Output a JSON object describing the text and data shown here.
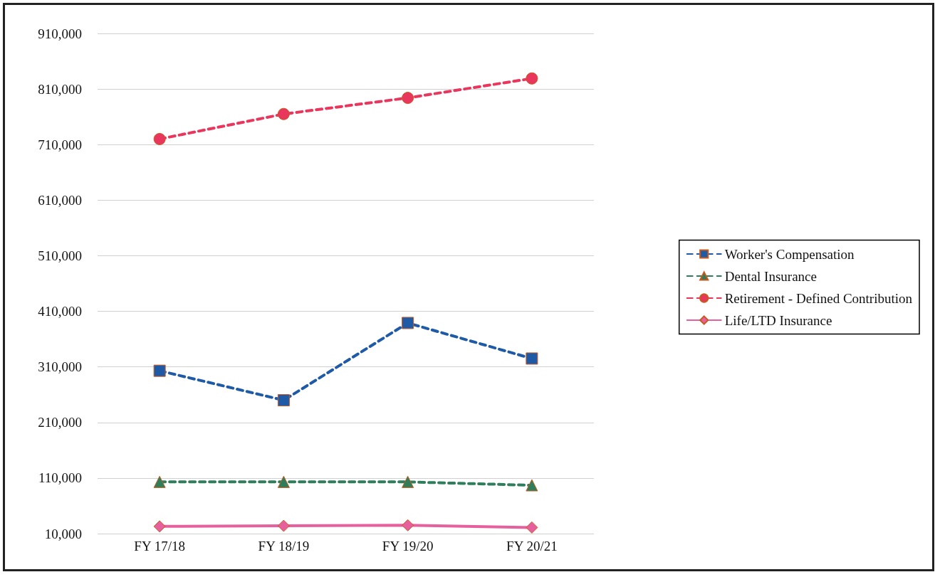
{
  "chart_data": {
    "type": "line",
    "categories": [
      "FY 17/18",
      "FY 18/19",
      "FY 19/20",
      "FY 20/21"
    ],
    "series": [
      {
        "name": "Worker's Compensation",
        "color": "#1f5aa6",
        "marker": "square",
        "line_style": "dashed",
        "values": [
          303000,
          250000,
          389000,
          325000
        ]
      },
      {
        "name": "Dental Insurance",
        "color": "#2e7d5b",
        "marker": "triangle",
        "line_style": "dashed",
        "values": [
          103000,
          103000,
          103000,
          97000
        ]
      },
      {
        "name": "Retirement - Defined Contribution",
        "color": "#e8365d",
        "marker": "circle",
        "line_style": "dashed",
        "values": [
          720000,
          765000,
          794000,
          829000
        ]
      },
      {
        "name": "Life/LTD Insurance",
        "color": "#e7609e",
        "marker": "diamond",
        "line_style": "solid",
        "values": [
          23000,
          24000,
          25000,
          21000
        ]
      }
    ],
    "ylim": [
      10000,
      910000
    ],
    "yticks": [
      {
        "value": 10000,
        "label": "10,000"
      },
      {
        "value": 110000,
        "label": "110,000"
      },
      {
        "value": 210000,
        "label": "210,000"
      },
      {
        "value": 310000,
        "label": "310,000"
      },
      {
        "value": 410000,
        "label": "410,000"
      },
      {
        "value": 510000,
        "label": "510,000"
      },
      {
        "value": 610000,
        "label": "610,000"
      },
      {
        "value": 710000,
        "label": "710,000"
      },
      {
        "value": 810000,
        "label": "810,000"
      },
      {
        "value": 910000,
        "label": "910,000"
      }
    ],
    "grid": "y",
    "legend": "right"
  }
}
